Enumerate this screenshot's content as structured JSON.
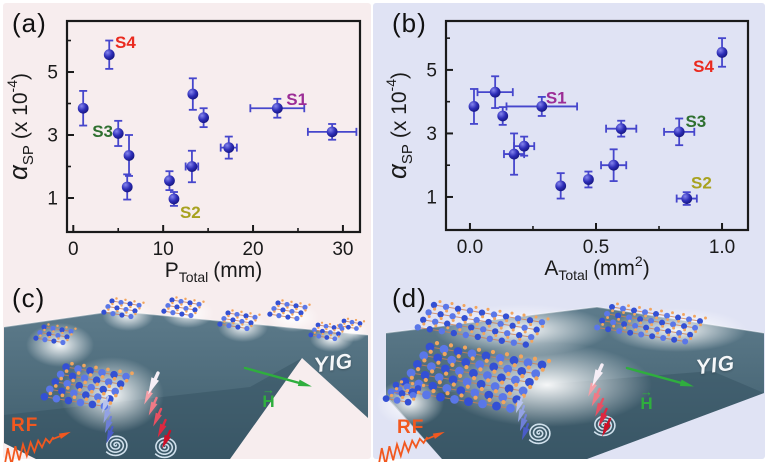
{
  "panels": {
    "a": {
      "letter": "(a)"
    },
    "b": {
      "letter": "(b)"
    },
    "c": {
      "letter": "(c)",
      "yig_label": "YIG",
      "field_label": "H",
      "rf_label": "RF"
    },
    "d": {
      "letter": "(d)",
      "yig_label": "YIG",
      "field_label": "H",
      "rf_label": "RF"
    }
  },
  "colors": {
    "left_bg": "#f7edee",
    "right_bg": "#e0e3f4",
    "axis": "#1a1a1a",
    "marker_fill": "#2e2eb8",
    "marker_hi": "#8585ee",
    "marker_dark": "#15157e",
    "errorbar": "#4646cc",
    "s1": "#9c2d96",
    "s2": "#a8a21f",
    "s3": "#2f7030",
    "s4": "#ea2a1f",
    "slab_top": "#5d7b8b",
    "slab_bottom": "#3e5c6b",
    "slab_front": "#32505f",
    "mol_blue_a": "#3350d4",
    "mol_blue_b": "#5a77e8",
    "mol_orange": "#f2a55e",
    "mol_bond": "#cf7f52",
    "spiral": "#d8e8f3",
    "h_green": "#2fae3e",
    "rf_orange": "#f2581f",
    "glow": "#ffffff"
  },
  "chart_data": [
    {
      "type": "scatter",
      "panel": "a",
      "title": "",
      "xlabel": "P_Total (mm)",
      "ylabel": "α_SP (x 10^-4)",
      "xlabel_parts": {
        "pre": "P",
        "sub": "Total",
        "post": "(mm)",
        "sup": "",
        "end": ""
      },
      "ylabel_parts": {
        "pre": "α",
        "sub": "SP",
        "post": "(x 10",
        "sup": "-4",
        "end": ")"
      },
      "xlim": [
        -0.7,
        31.9
      ],
      "ylim": [
        -0.08,
        6.62
      ],
      "xticks": [
        0,
        10,
        20,
        30
      ],
      "xtick_labels": [
        "0",
        "10",
        "20",
        "30"
      ],
      "xminor": [
        5,
        15,
        25
      ],
      "yticks": [
        1,
        3,
        5
      ],
      "ytick_labels": [
        "1",
        "3",
        "5"
      ],
      "yminor": [
        2,
        4,
        6
      ],
      "grid": false,
      "points": [
        {
          "x": 1.1,
          "y": 3.85,
          "ey": 0.55
        },
        {
          "x": 4.0,
          "y": 5.55,
          "ey": 0.45,
          "sample": "S4"
        },
        {
          "x": 5.0,
          "y": 3.05,
          "ey": 0.4,
          "sample": "S3"
        },
        {
          "x": 6.2,
          "y": 2.35,
          "ey": 0.65
        },
        {
          "x": 6.0,
          "y": 1.35,
          "ey": 0.4
        },
        {
          "x": 10.7,
          "y": 1.55,
          "ey": 0.3
        },
        {
          "x": 11.2,
          "y": 0.97,
          "ey": 0.22,
          "sample": "S2"
        },
        {
          "x": 13.3,
          "y": 4.3,
          "ey": 0.5
        },
        {
          "x": 13.2,
          "y": 2.0,
          "ex": 0.7,
          "ey": 0.5
        },
        {
          "x": 14.5,
          "y": 3.55,
          "ey": 0.3
        },
        {
          "x": 17.3,
          "y": 2.6,
          "ex": 0.9,
          "ey": 0.35
        },
        {
          "x": 22.7,
          "y": 3.85,
          "ex": 3.0,
          "ey": 0.3,
          "sample": "S1"
        },
        {
          "x": 28.8,
          "y": 3.1,
          "ex": 2.7,
          "ey": 0.25
        }
      ],
      "annotations": [
        {
          "text": "S4",
          "x": 4.64,
          "y": 5.76,
          "anchor": "start",
          "color": "s4"
        },
        {
          "text": "S3",
          "x": 4.42,
          "y": 2.94,
          "anchor": "end",
          "color": "s3"
        },
        {
          "text": "S2",
          "x": 11.87,
          "y": 0.36,
          "anchor": "start",
          "color": "s2"
        },
        {
          "text": "S1",
          "x": 23.7,
          "y": 3.95,
          "anchor": "start",
          "color": "s1"
        }
      ]
    },
    {
      "type": "scatter",
      "panel": "b",
      "title": "",
      "xlabel": "A_Total (mm^2)",
      "ylabel": "α_SP (x 10^-4)",
      "xlabel_parts": {
        "pre": "A",
        "sub": "Total",
        "post": "(mm",
        "sup": "2",
        "end": ")"
      },
      "ylabel_parts": {
        "pre": "α",
        "sub": "SP",
        "post": "(x 10",
        "sup": "-4",
        "end": ")"
      },
      "xlim": [
        -0.095,
        1.103
      ],
      "ylim": [
        -0.04,
        6.54
      ],
      "xticks": [
        0.0,
        0.5,
        1.0
      ],
      "xtick_labels": [
        "0.0",
        "0.5",
        "1.0"
      ],
      "xminor": [
        0.25,
        0.75
      ],
      "yticks": [
        1,
        3,
        5
      ],
      "ytick_labels": [
        "1",
        "3",
        "5"
      ],
      "yminor": [
        2,
        4,
        6
      ],
      "grid": false,
      "points": [
        {
          "x": 0.016,
          "y": 3.85,
          "ey": 0.55
        },
        {
          "x": 0.1,
          "y": 4.3,
          "ex": 0.07,
          "ey": 0.5
        },
        {
          "x": 0.13,
          "y": 3.55,
          "ey": 0.28
        },
        {
          "x": 0.175,
          "y": 2.35,
          "ex": 0.04,
          "ey": 0.65
        },
        {
          "x": 0.215,
          "y": 2.6,
          "ex": 0.04,
          "ey": 0.3
        },
        {
          "x": 0.285,
          "y": 3.85,
          "ex": 0.14,
          "ey": 0.3,
          "sample": "S1"
        },
        {
          "x": 0.36,
          "y": 1.35,
          "ey": 0.4
        },
        {
          "x": 0.47,
          "y": 1.55,
          "ey": 0.25
        },
        {
          "x": 0.57,
          "y": 2.0,
          "ex": 0.05,
          "ey": 0.5
        },
        {
          "x": 0.6,
          "y": 3.15,
          "ex": 0.06,
          "ey": 0.25
        },
        {
          "x": 0.83,
          "y": 3.05,
          "ex": 0.06,
          "ey": 0.42,
          "sample": "S3"
        },
        {
          "x": 0.86,
          "y": 0.95,
          "ex": 0.04,
          "ey": 0.2,
          "sample": "S2"
        },
        {
          "x": 1.0,
          "y": 5.55,
          "ey": 0.45,
          "sample": "S4"
        }
      ],
      "annotations": [
        {
          "text": "S1",
          "x": 0.301,
          "y": 3.95,
          "anchor": "start",
          "color": "s1"
        },
        {
          "text": "S4",
          "x": 0.968,
          "y": 4.94,
          "anchor": "end",
          "color": "s4"
        },
        {
          "text": "S3",
          "x": 0.855,
          "y": 3.2,
          "anchor": "start",
          "color": "s3"
        },
        {
          "text": "S2",
          "x": 0.877,
          "y": 1.26,
          "anchor": "start",
          "color": "s2"
        }
      ]
    }
  ]
}
